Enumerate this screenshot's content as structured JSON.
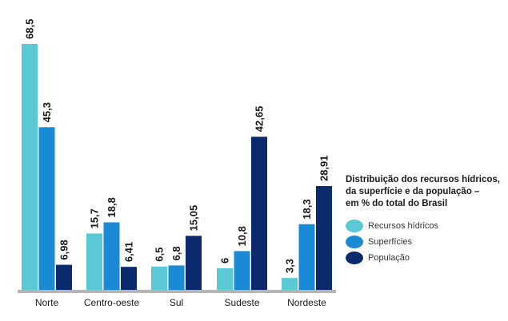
{
  "chart_data": {
    "type": "bar",
    "categories": [
      "Norte",
      "Centro-oeste",
      "Sul",
      "Sudeste",
      "Nordeste"
    ],
    "series": [
      {
        "name": "Recursos hídricos",
        "values": [
          68.5,
          15.7,
          6.5,
          6,
          3.3
        ],
        "labels": [
          "68,5",
          "15,7",
          "6,5",
          "6",
          "3,3"
        ],
        "color": "#5bc8d6"
      },
      {
        "name": "Superfícies",
        "values": [
          45.3,
          18.8,
          6.8,
          10.8,
          18.3
        ],
        "labels": [
          "45,3",
          "18,8",
          "6,8",
          "10,8",
          "18,3"
        ],
        "color": "#1a8ad4"
      },
      {
        "name": "População",
        "values": [
          6.98,
          6.41,
          15.05,
          42.65,
          28.91
        ],
        "labels": [
          "6,98",
          "6,41",
          "15,05",
          "42,65",
          "28,91"
        ],
        "color": "#0b2a6e"
      }
    ],
    "ylim": [
      0,
      70
    ],
    "grid": false,
    "legend_title": [
      "Distribuição dos recursos hídricos,",
      "da superfície e da população –",
      "em % do total do Brasil"
    ],
    "legend_position": "right"
  }
}
